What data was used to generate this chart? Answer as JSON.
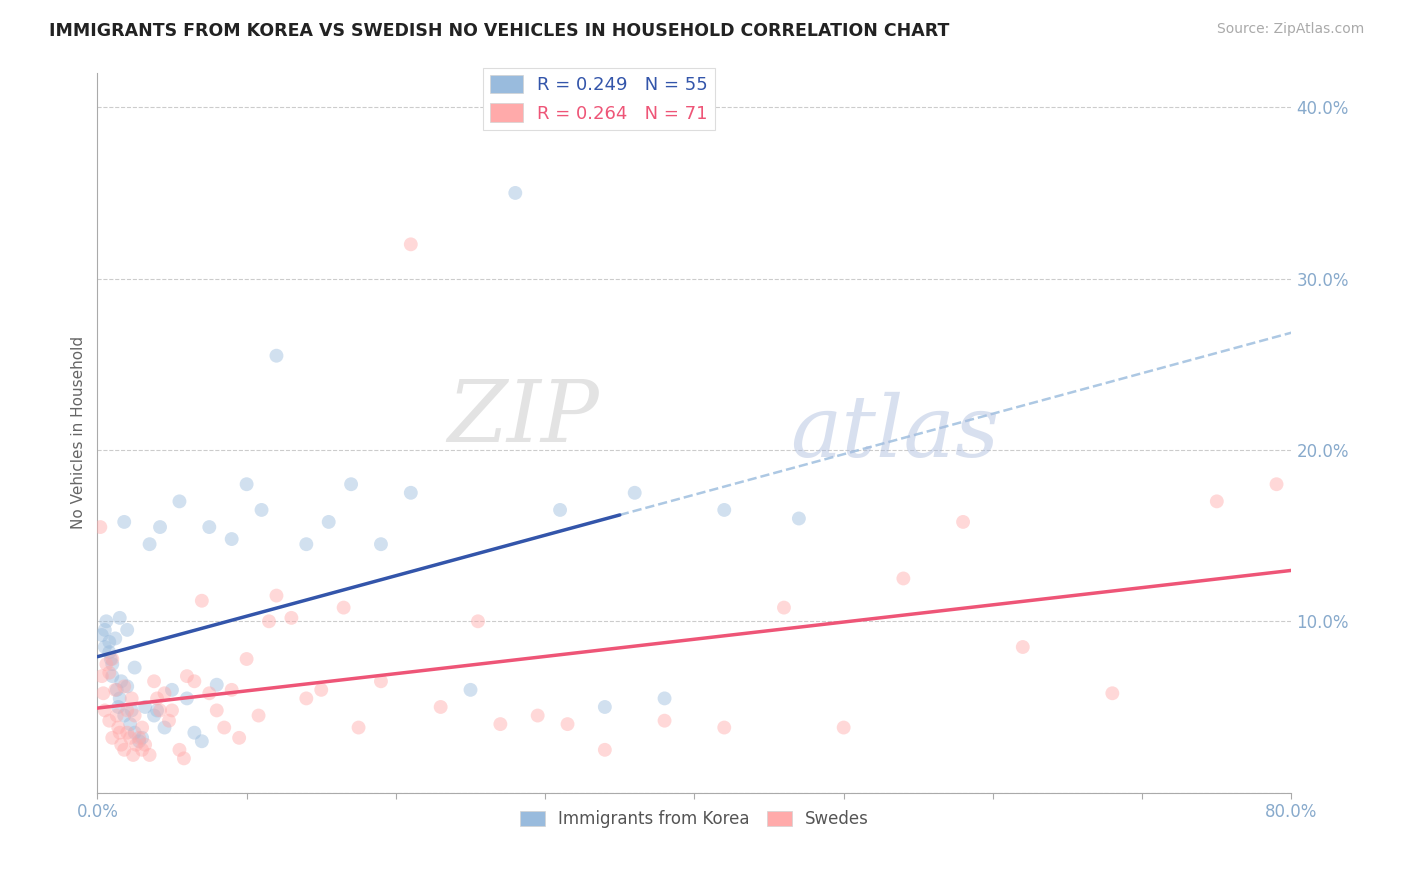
{
  "title": "IMMIGRANTS FROM KOREA VS SWEDISH NO VEHICLES IN HOUSEHOLD CORRELATION CHART",
  "source": "Source: ZipAtlas.com",
  "ylabel": "No Vehicles in Household",
  "legend_blue_r": "R = 0.249",
  "legend_blue_n": "N = 55",
  "legend_pink_r": "R = 0.264",
  "legend_pink_n": "N = 71",
  "legend_label_blue": "Immigrants from Korea",
  "legend_label_pink": "Swedes",
  "blue_color": "#99BBDD",
  "pink_color": "#FFAAAA",
  "blue_line_color": "#3355AA",
  "pink_line_color": "#EE5577",
  "dashed_line_color": "#99BBDD",
  "watermark_zip": "ZIP",
  "watermark_atlas": "atlas",
  "blue_x": [
    0.003,
    0.005,
    0.005,
    0.006,
    0.008,
    0.008,
    0.009,
    0.01,
    0.01,
    0.012,
    0.013,
    0.014,
    0.015,
    0.015,
    0.016,
    0.018,
    0.018,
    0.02,
    0.02,
    0.022,
    0.023,
    0.025,
    0.025,
    0.028,
    0.03,
    0.032,
    0.035,
    0.038,
    0.04,
    0.042,
    0.045,
    0.05,
    0.055,
    0.06,
    0.065,
    0.07,
    0.075,
    0.08,
    0.09,
    0.1,
    0.11,
    0.12,
    0.14,
    0.155,
    0.17,
    0.19,
    0.21,
    0.25,
    0.28,
    0.31,
    0.34,
    0.36,
    0.38,
    0.42,
    0.47
  ],
  "blue_y": [
    0.092,
    0.085,
    0.095,
    0.1,
    0.082,
    0.088,
    0.078,
    0.068,
    0.075,
    0.09,
    0.06,
    0.05,
    0.055,
    0.102,
    0.065,
    0.045,
    0.158,
    0.062,
    0.095,
    0.04,
    0.048,
    0.035,
    0.073,
    0.03,
    0.032,
    0.05,
    0.145,
    0.045,
    0.048,
    0.155,
    0.038,
    0.06,
    0.17,
    0.055,
    0.035,
    0.03,
    0.155,
    0.063,
    0.148,
    0.18,
    0.165,
    0.255,
    0.145,
    0.158,
    0.18,
    0.145,
    0.175,
    0.06,
    0.35,
    0.165,
    0.05,
    0.175,
    0.055,
    0.165,
    0.16
  ],
  "pink_x": [
    0.002,
    0.003,
    0.004,
    0.005,
    0.006,
    0.008,
    0.008,
    0.01,
    0.01,
    0.012,
    0.013,
    0.014,
    0.015,
    0.016,
    0.018,
    0.018,
    0.02,
    0.02,
    0.022,
    0.023,
    0.024,
    0.025,
    0.026,
    0.028,
    0.03,
    0.03,
    0.032,
    0.035,
    0.038,
    0.04,
    0.042,
    0.045,
    0.048,
    0.05,
    0.055,
    0.058,
    0.06,
    0.065,
    0.07,
    0.075,
    0.08,
    0.085,
    0.09,
    0.095,
    0.1,
    0.108,
    0.115,
    0.12,
    0.13,
    0.14,
    0.15,
    0.165,
    0.175,
    0.19,
    0.21,
    0.23,
    0.255,
    0.27,
    0.295,
    0.315,
    0.34,
    0.38,
    0.42,
    0.46,
    0.5,
    0.54,
    0.58,
    0.62,
    0.68,
    0.75,
    0.79
  ],
  "pink_y": [
    0.155,
    0.068,
    0.058,
    0.048,
    0.075,
    0.07,
    0.042,
    0.078,
    0.032,
    0.06,
    0.045,
    0.038,
    0.035,
    0.028,
    0.062,
    0.025,
    0.048,
    0.035,
    0.032,
    0.055,
    0.022,
    0.045,
    0.028,
    0.032,
    0.025,
    0.038,
    0.028,
    0.022,
    0.065,
    0.055,
    0.048,
    0.058,
    0.042,
    0.048,
    0.025,
    0.02,
    0.068,
    0.065,
    0.112,
    0.058,
    0.048,
    0.038,
    0.06,
    0.032,
    0.078,
    0.045,
    0.1,
    0.115,
    0.102,
    0.055,
    0.06,
    0.108,
    0.038,
    0.065,
    0.32,
    0.05,
    0.1,
    0.04,
    0.045,
    0.04,
    0.025,
    0.042,
    0.038,
    0.108,
    0.038,
    0.125,
    0.158,
    0.085,
    0.058,
    0.17,
    0.18
  ],
  "xlim": [
    0.0,
    0.8
  ],
  "ylim": [
    0.0,
    0.42
  ],
  "yticks": [
    0.0,
    0.1,
    0.2,
    0.3,
    0.4
  ],
  "xticks": [
    0.0,
    0.1,
    0.2,
    0.3,
    0.4,
    0.5,
    0.6,
    0.7,
    0.8
  ],
  "figsize": [
    14.06,
    8.92
  ],
  "dpi": 100,
  "background_color": "#ffffff",
  "grid_color": "#cccccc",
  "title_color": "#222222",
  "axis_color": "#88AACC",
  "marker_size": 100,
  "marker_alpha": 0.45
}
